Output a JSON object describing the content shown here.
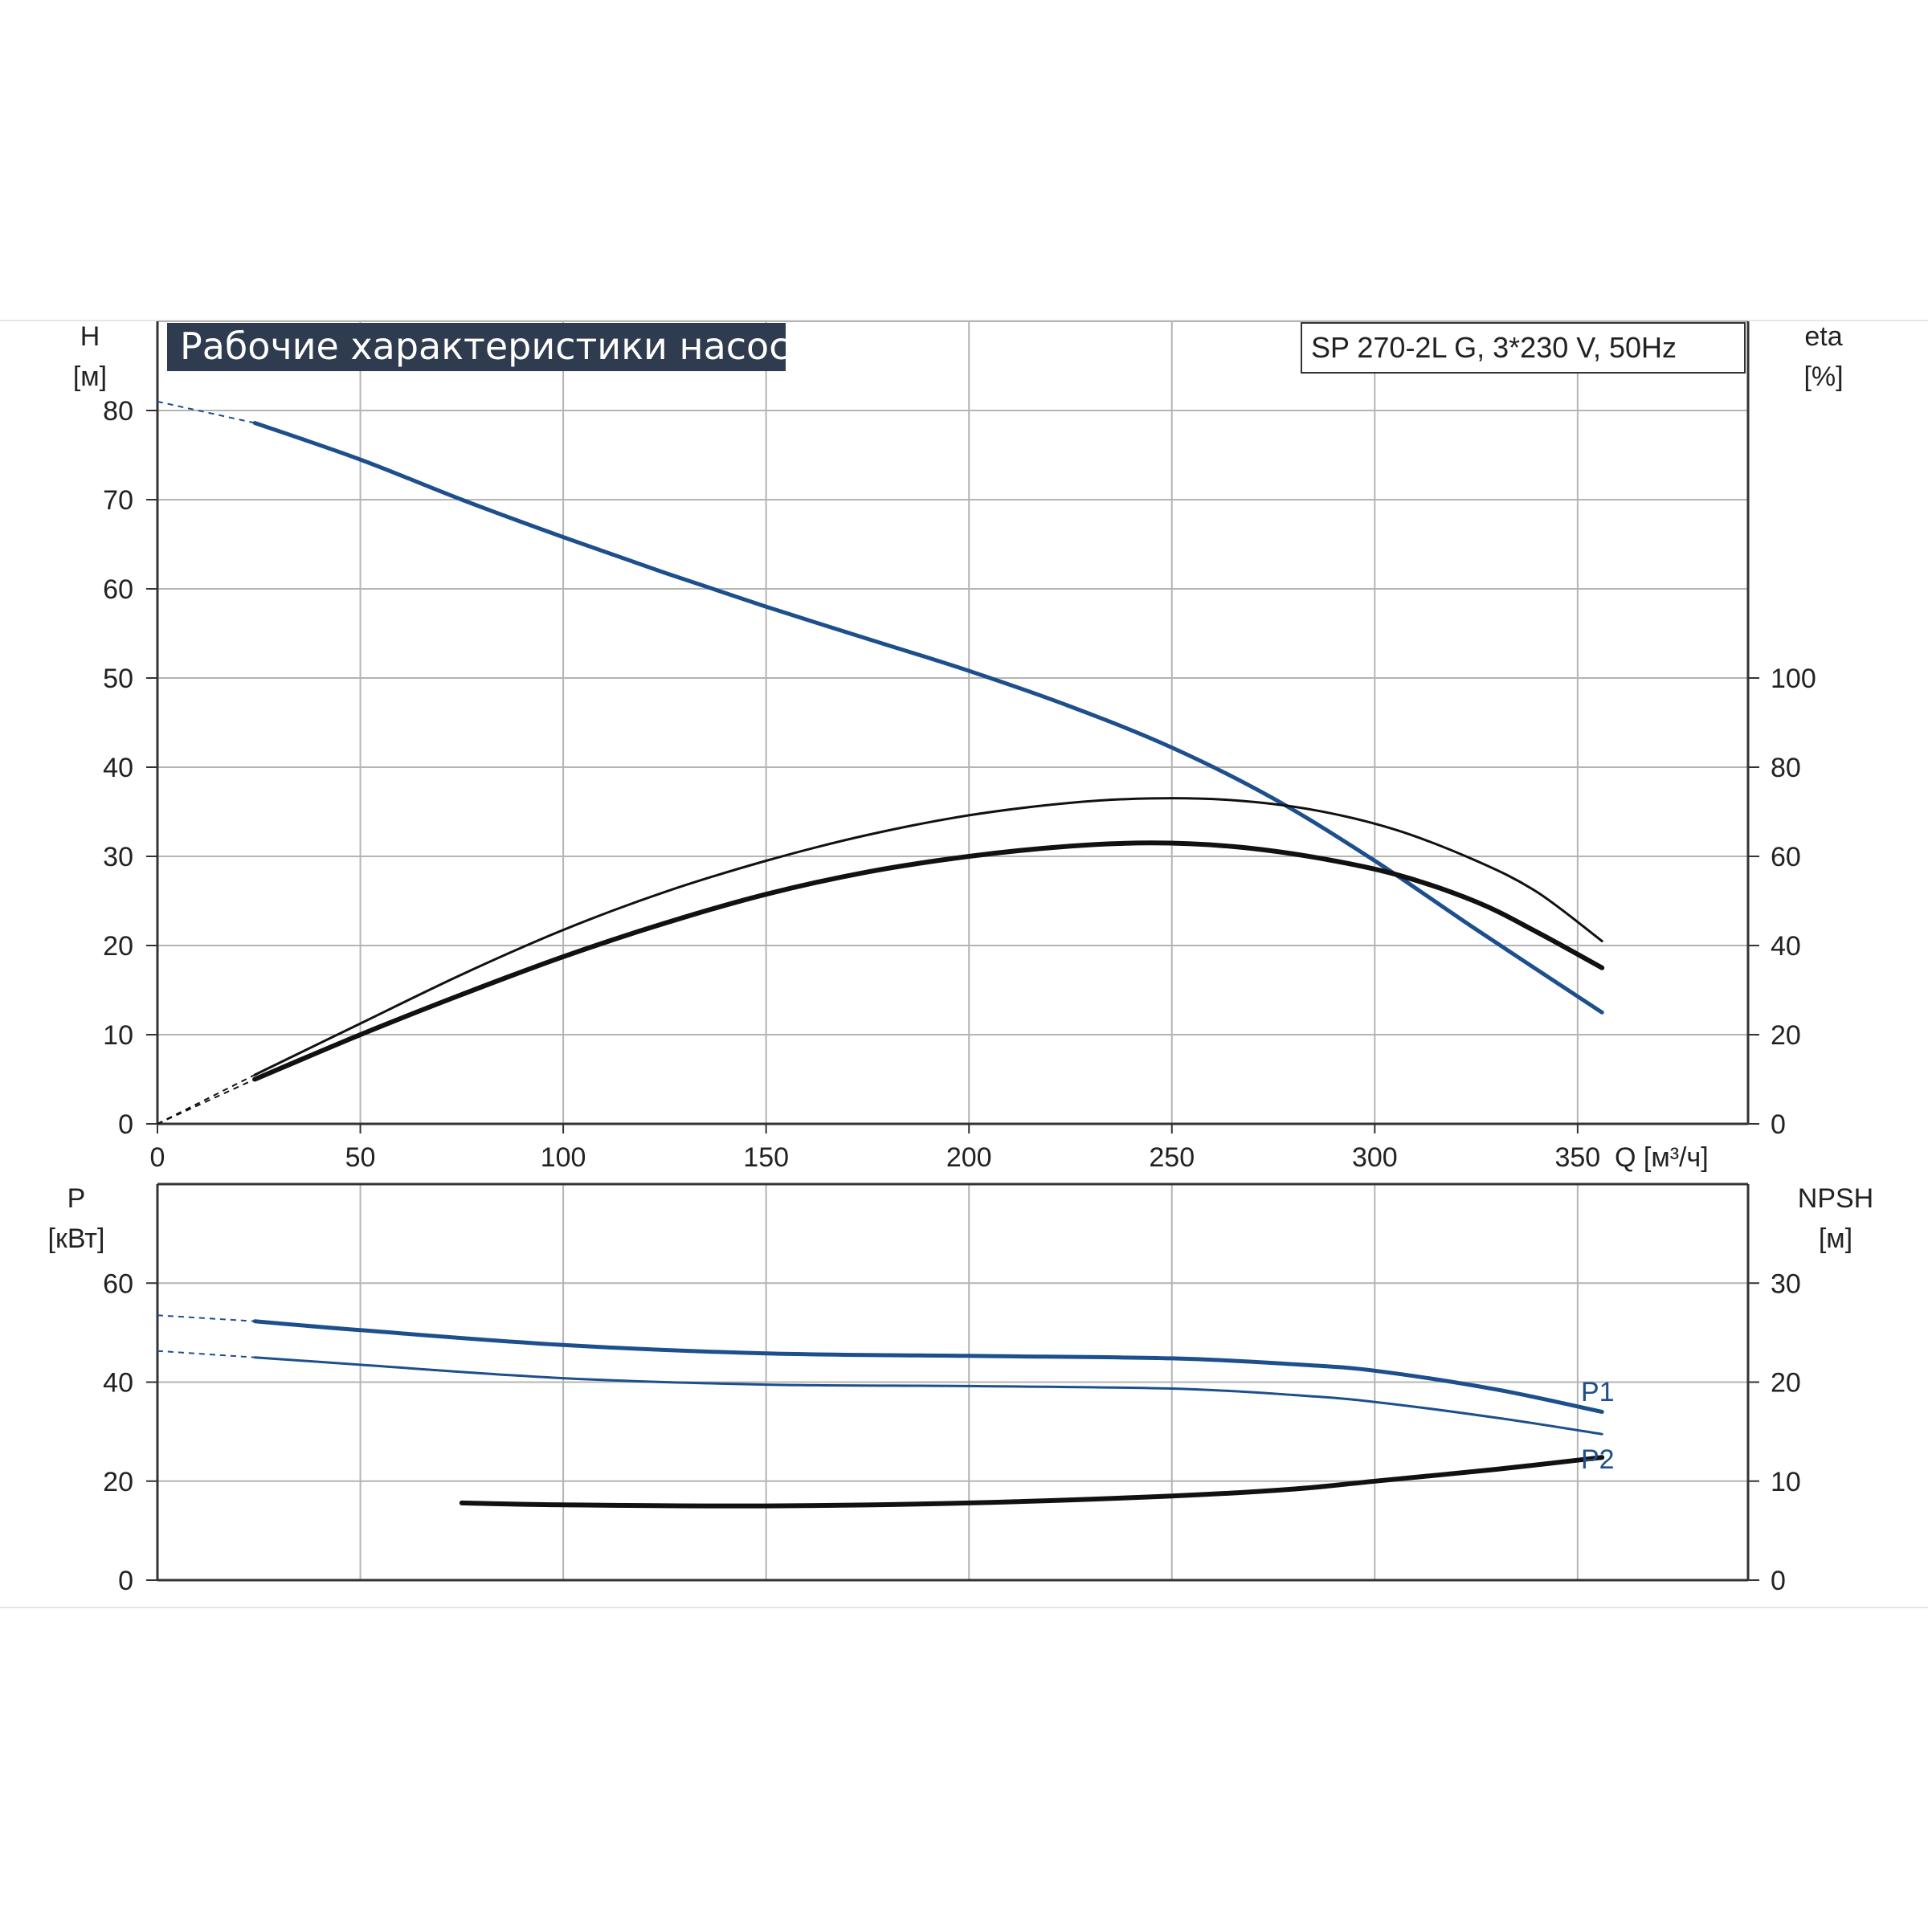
{
  "title": "Рабочие характеристики насоса",
  "model": "SP 270-2L G, 3*230 V, 50Hz",
  "colors": {
    "background": "#ffffff",
    "grid": "#b4b4b4",
    "axis": "#333333",
    "title_bg": "#2f3b4e",
    "title_text": "#ffffff",
    "blue_curve": "#1d4f8c",
    "black_curve": "#111111"
  },
  "chart_data": [
    {
      "type": "line",
      "name_panel": "upper",
      "title": "Рабочие характеристики насоса",
      "subtitle": "SP 270-2L G, 3*230 V, 50Hz",
      "xlabel": "Q [м³/ч]",
      "x_ticks": [
        "0",
        "50",
        "100",
        "150",
        "200",
        "250",
        "300",
        "350"
      ],
      "xlim": [
        0,
        392
      ],
      "ylabel_left": [
        "H",
        "[м]"
      ],
      "ylim_left": [
        0,
        90
      ],
      "y_ticks_left": [
        "0",
        "10",
        "20",
        "30",
        "40",
        "50",
        "60",
        "70",
        "80"
      ],
      "ylabel_right": [
        "eta",
        "[%]"
      ],
      "ylim_right": [
        0,
        180
      ],
      "y_ticks_right": [
        "0",
        "20",
        "40",
        "60",
        "80",
        "100"
      ],
      "grid": true,
      "series": [
        {
          "axis": "left",
          "color": "#1d4f8c",
          "x": [
            0,
            24,
            50,
            75,
            100,
            125,
            150,
            175,
            200,
            225,
            250,
            275,
            300,
            325,
            356
          ],
          "values": [
            81.0,
            78.6,
            74.5,
            70.0,
            65.8,
            61.8,
            58.0,
            54.4,
            50.8,
            46.8,
            42.2,
            36.5,
            29.5,
            21.8,
            12.5
          ],
          "dashed_to_x": 24
        },
        {
          "axis": "right",
          "color": "#111111",
          "x": [
            0,
            24,
            50,
            75,
            100,
            125,
            150,
            175,
            200,
            225,
            245,
            265,
            285,
            305,
            325,
            340,
            356
          ],
          "values": [
            0,
            11.0,
            22.5,
            33.5,
            43.5,
            52.0,
            59.0,
            64.8,
            69.2,
            72.0,
            73.0,
            72.6,
            70.4,
            66.0,
            59.0,
            52.0,
            41.0
          ],
          "dashed_to_x": 24
        },
        {
          "axis": "right",
          "color": "#111111",
          "x": [
            0,
            24,
            50,
            75,
            100,
            125,
            150,
            175,
            200,
            225,
            245,
            265,
            285,
            305,
            325,
            340,
            356
          ],
          "values": [
            0,
            10.0,
            20.0,
            29.0,
            37.5,
            45.0,
            51.5,
            56.5,
            60.0,
            62.3,
            63.0,
            62.2,
            59.8,
            56.0,
            49.8,
            43.0,
            35.0
          ],
          "dashed_to_x": 24
        }
      ]
    },
    {
      "type": "line",
      "name_panel": "lower",
      "x_ticks": [],
      "xlim": [
        0,
        392
      ],
      "ylabel_left": [
        "P",
        "[кВт]"
      ],
      "ylim_left": [
        0,
        80
      ],
      "y_ticks_left": [
        "0",
        "20",
        "40",
        "60"
      ],
      "ylabel_right": [
        "NPSH",
        "[м]"
      ],
      "ylim_right": [
        0,
        40
      ],
      "y_ticks_right": [
        "0",
        "10",
        "20",
        "30"
      ],
      "grid": true,
      "series": [
        {
          "name": "P1",
          "axis": "left",
          "color": "#1d4f8c",
          "x": [
            0,
            24,
            50,
            100,
            150,
            200,
            250,
            280,
            300,
            330,
            356
          ],
          "values": [
            53.5,
            52.3,
            50.5,
            47.5,
            45.8,
            45.3,
            44.8,
            43.6,
            42.3,
            38.5,
            34.0
          ],
          "dashed_to_x": 24
        },
        {
          "name": "P2",
          "axis": "left",
          "color": "#1d4f8c",
          "x": [
            0,
            24,
            50,
            100,
            150,
            200,
            250,
            280,
            300,
            330,
            356
          ],
          "values": [
            46.3,
            45.0,
            43.5,
            40.8,
            39.5,
            39.2,
            38.7,
            37.4,
            36.0,
            32.8,
            29.5
          ],
          "dashed_to_x": 24
        },
        {
          "axis": "right",
          "color": "#111111",
          "x": [
            75,
            100,
            150,
            200,
            250,
            280,
            300,
            330,
            356
          ],
          "values": [
            7.8,
            7.6,
            7.5,
            7.8,
            8.5,
            9.2,
            10.0,
            11.2,
            12.4
          ],
          "dashed_to_x": null
        }
      ]
    }
  ]
}
